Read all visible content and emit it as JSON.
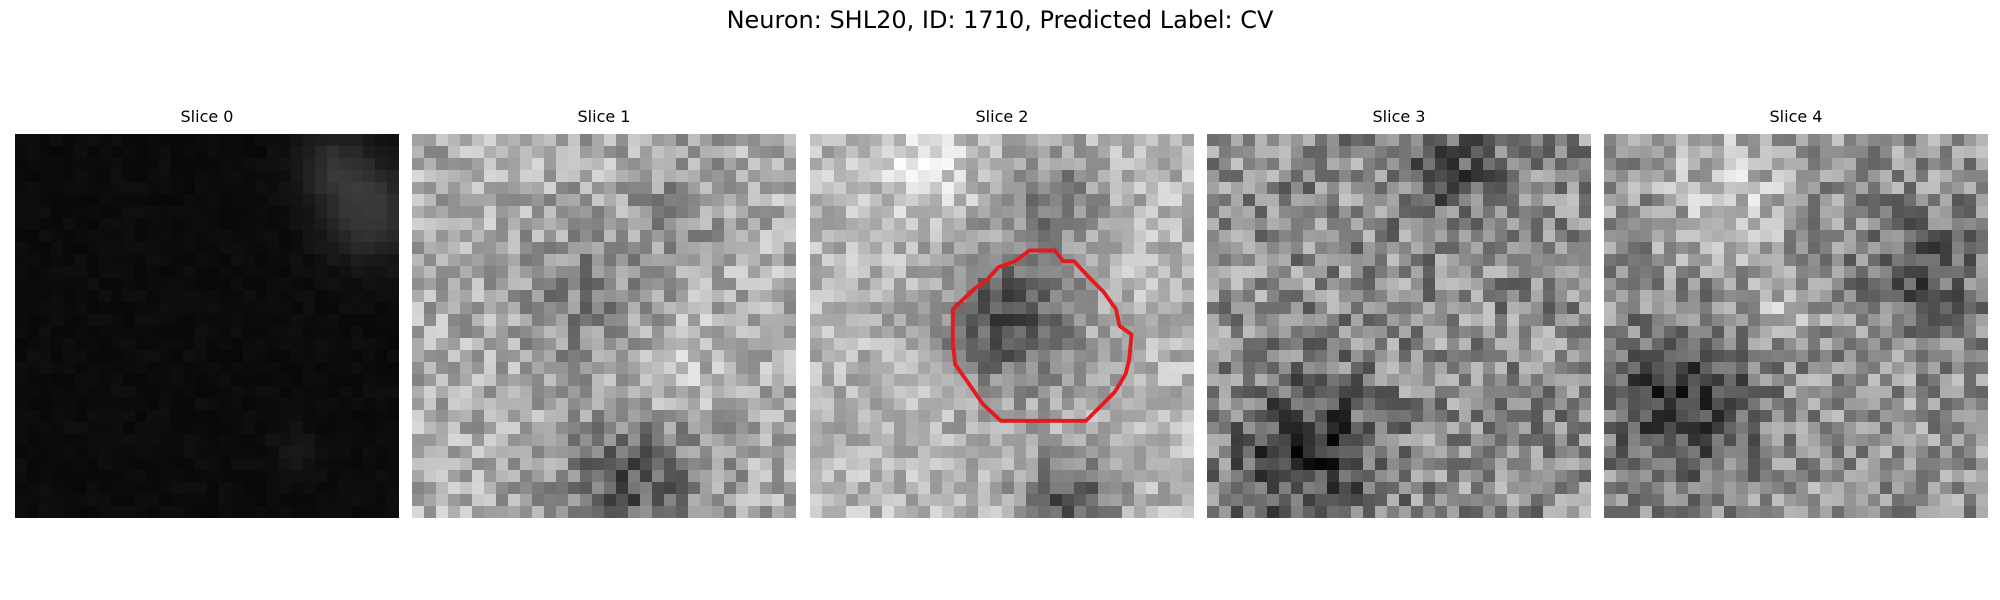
{
  "figure": {
    "title": "Neuron: SHL20, ID: 1710, Predicted Label: CV"
  },
  "panels": [
    {
      "title": "Slice 0"
    },
    {
      "title": "Slice 1"
    },
    {
      "title": "Slice 2"
    },
    {
      "title": "Slice 3"
    },
    {
      "title": "Slice 4"
    }
  ],
  "colors": {
    "contour": "#e41a1c",
    "background": "#ffffff"
  },
  "colormap": "gray"
}
